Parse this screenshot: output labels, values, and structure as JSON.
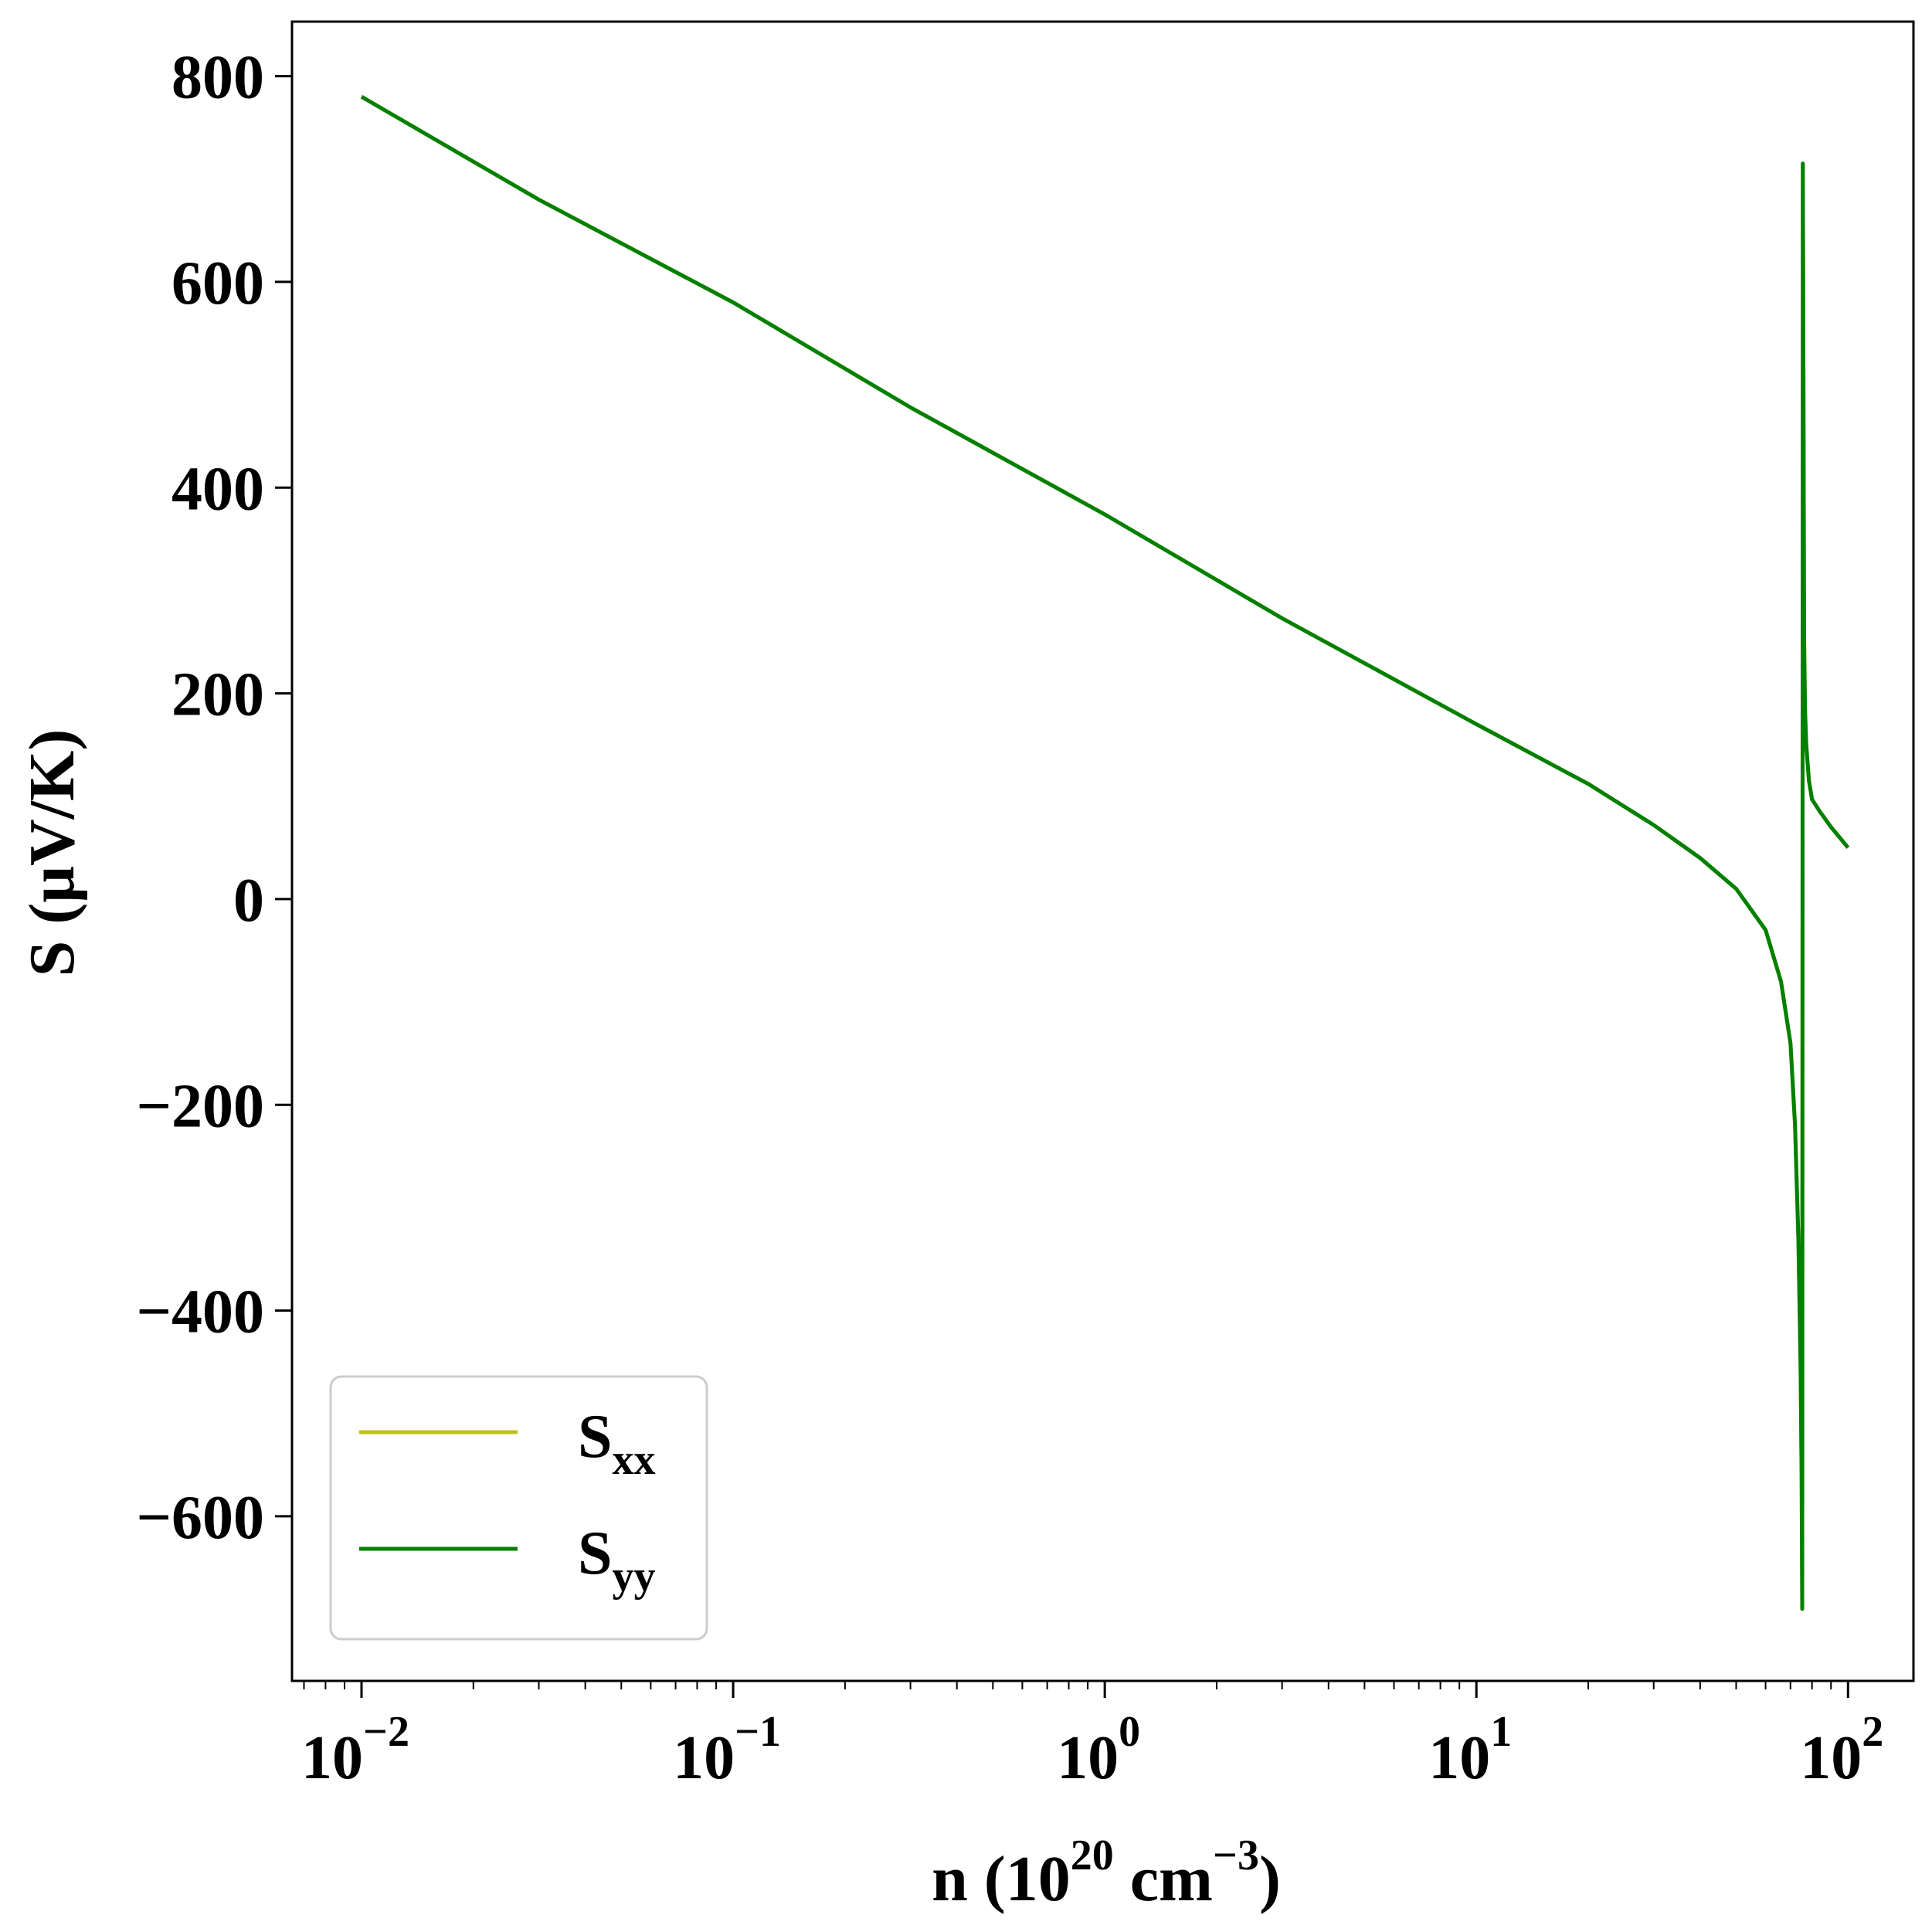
{
  "chart_data": {
    "type": "line",
    "xscale": "log",
    "xlim": [
      0.0065,
      150
    ],
    "ylim": [
      -760,
      853
    ],
    "xlabel": {
      "main": "n (10",
      "sup1": "20",
      "mid": " cm",
      "sup2": "−3",
      "end": ")"
    },
    "ylabel": "S (μV/K)",
    "grid": false,
    "legend_position": "lower-left",
    "x_ticks": [
      {
        "value": 0.01,
        "base": "10",
        "exp": "−2"
      },
      {
        "value": 0.1,
        "base": "10",
        "exp": "−1"
      },
      {
        "value": 1,
        "base": "10",
        "exp": "0"
      },
      {
        "value": 10,
        "base": "10",
        "exp": "1"
      },
      {
        "value": 100,
        "base": "10",
        "exp": "2"
      }
    ],
    "y_ticks": [
      {
        "value": 800,
        "label": "800"
      },
      {
        "value": 600,
        "label": "600"
      },
      {
        "value": 400,
        "label": "400"
      },
      {
        "value": 200,
        "label": "200"
      },
      {
        "value": 0,
        "label": "0"
      },
      {
        "value": -200,
        "label": "−200"
      },
      {
        "value": -400,
        "label": "−400"
      },
      {
        "value": -600,
        "label": "−600"
      }
    ],
    "series": [
      {
        "name": {
          "base": "S",
          "sub": "xx"
        },
        "color": "#bfbf1a",
        "x": [
          0.01,
          0.03,
          0.1,
          0.3,
          1,
          3,
          10,
          20,
          30,
          40,
          50,
          60,
          66,
          70,
          72,
          73.5,
          74.5,
          75,
          75.3,
          75.6,
          75.9,
          76.2,
          76.6,
          77.2,
          78.5,
          80,
          84,
          90,
          100
        ],
        "y": [
          780,
          680,
          580,
          478,
          374,
          273,
          170,
          112,
          72,
          40,
          10,
          -30,
          -80,
          -140,
          -220,
          -330,
          -450,
          -560,
          -690,
          715,
          480,
          250,
          185,
          150,
          115,
          97,
          85,
          70,
          50
        ]
      },
      {
        "name": {
          "base": "S",
          "sub": "yy"
        },
        "color": "#008000",
        "x": [
          0.01,
          0.03,
          0.1,
          0.3,
          1,
          3,
          10,
          20,
          30,
          40,
          50,
          60,
          66,
          70,
          72,
          73.5,
          74.5,
          75,
          75.3,
          75.6,
          75.9,
          76.2,
          76.6,
          77.2,
          78.5,
          80,
          84,
          90,
          100
        ],
        "y": [
          780,
          680,
          580,
          478,
          374,
          273,
          170,
          112,
          72,
          40,
          10,
          -30,
          -80,
          -140,
          -220,
          -330,
          -450,
          -560,
          -690,
          715,
          480,
          250,
          185,
          150,
          115,
          97,
          85,
          70,
          50
        ]
      }
    ]
  }
}
